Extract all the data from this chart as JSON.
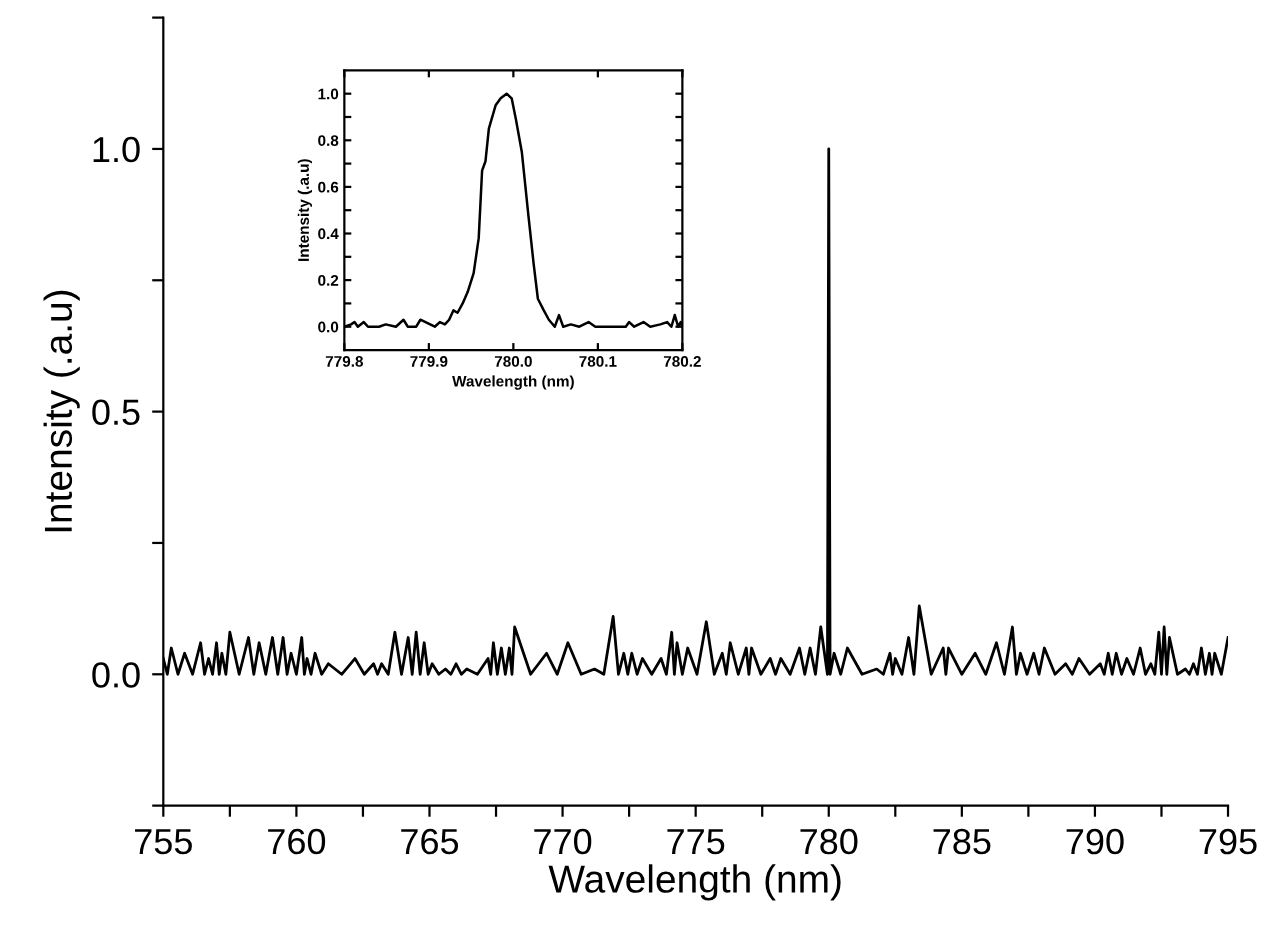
{
  "chart_data": [
    {
      "type": "line",
      "xlabel": "Wavelength (nm)",
      "ylabel": "Intensity (.a.u)",
      "xlim": [
        755,
        795
      ],
      "ylim": [
        -0.25,
        1.25
      ],
      "xticks": [
        755,
        {
          "value": 757.5,
          "label": null
        },
        760,
        {
          "value": 762.5,
          "label": null
        },
        765,
        {
          "value": 767.5,
          "label": null
        },
        770,
        {
          "value": 772.5,
          "label": null
        },
        775,
        {
          "value": 777.5,
          "label": null
        },
        780,
        {
          "value": 782.5,
          "label": null
        },
        785,
        {
          "value": 787.5,
          "label": null
        },
        790,
        {
          "value": 792.5,
          "label": null
        },
        795
      ],
      "yticks": [
        {
          "value": -0.25,
          "label": null
        },
        {
          "value": 0,
          "label": "0.0"
        },
        {
          "value": 0.25,
          "label": null
        },
        0.5,
        {
          "value": 0.75,
          "label": null
        },
        {
          "value": 1,
          "label": "1.0"
        },
        {
          "value": 1.25,
          "label": null
        }
      ],
      "grid": false,
      "legend": false,
      "line_style": "solid",
      "marker": "none",
      "series": [
        {
          "color": "#000000",
          "x": [
            755.0,
            755.15,
            755.3,
            755.55,
            755.8,
            756.1,
            756.4,
            756.55,
            756.7,
            756.85,
            757.0,
            757.1,
            757.2,
            757.35,
            757.5,
            757.85,
            758.2,
            758.4,
            758.6,
            758.85,
            759.1,
            759.3,
            759.5,
            759.65,
            759.8,
            760.0,
            760.2,
            760.3,
            760.4,
            760.55,
            760.7,
            760.95,
            761.2,
            761.7,
            762.2,
            762.55,
            762.9,
            763.05,
            763.2,
            763.45,
            763.7,
            763.95,
            764.2,
            764.35,
            764.5,
            764.65,
            764.8,
            764.95,
            765.1,
            765.35,
            765.6,
            765.8,
            766.0,
            766.2,
            766.4,
            766.8,
            767.2,
            767.3,
            767.4,
            767.55,
            767.7,
            767.85,
            768.0,
            768.1,
            768.2,
            768.8,
            769.4,
            769.8,
            770.2,
            770.7,
            771.2,
            771.55,
            771.9,
            772.1,
            772.3,
            772.45,
            772.6,
            772.8,
            773.0,
            773.35,
            773.7,
            773.9,
            774.1,
            774.2,
            774.3,
            774.5,
            774.7,
            775.05,
            775.4,
            775.7,
            776.0,
            776.15,
            776.3,
            776.6,
            776.9,
            777.0,
            777.1,
            777.45,
            777.8,
            778.0,
            778.2,
            778.55,
            778.9,
            779.1,
            779.3,
            779.5,
            779.7,
            779.95,
            780.0,
            780.05,
            780.2,
            780.45,
            780.7,
            781.25,
            781.8,
            782.05,
            782.3,
            782.4,
            782.5,
            782.75,
            783.0,
            783.2,
            783.4,
            783.85,
            784.3,
            784.4,
            784.5,
            785.0,
            785.5,
            785.9,
            786.3,
            786.6,
            786.9,
            787.05,
            787.2,
            787.45,
            787.7,
            787.9,
            788.1,
            788.5,
            788.9,
            789.15,
            789.4,
            789.8,
            790.2,
            790.35,
            790.5,
            790.65,
            790.8,
            791.0,
            791.2,
            791.45,
            791.7,
            791.9,
            792.1,
            792.25,
            792.4,
            792.5,
            792.6,
            792.7,
            792.8,
            793.1,
            793.4,
            793.55,
            793.7,
            793.85,
            794.0,
            794.15,
            794.3,
            794.4,
            794.5,
            794.75,
            795.0
          ],
          "values": [
            0.03,
            0,
            0.05,
            0,
            0.04,
            0,
            0.06,
            0,
            0.03,
            0,
            0.06,
            0,
            0.04,
            0,
            0.08,
            0,
            0.07,
            0,
            0.06,
            0,
            0.07,
            0,
            0.07,
            0,
            0.04,
            0,
            0.07,
            0,
            0.03,
            0,
            0.04,
            0,
            0.02,
            0,
            0.03,
            0,
            0.02,
            0,
            0.02,
            0,
            0.08,
            0,
            0.07,
            0,
            0.08,
            0,
            0.06,
            0,
            0.02,
            0,
            0.01,
            0,
            0.02,
            0,
            0.01,
            0,
            0.03,
            0,
            0.06,
            0,
            0.05,
            0,
            0.05,
            0,
            0.09,
            0,
            0.04,
            0,
            0.06,
            0,
            0.01,
            0,
            0.11,
            0,
            0.04,
            0,
            0.04,
            0,
            0.03,
            0,
            0.03,
            0,
            0.08,
            0,
            0.06,
            0,
            0.05,
            0,
            0.1,
            0,
            0.04,
            0,
            0.06,
            0,
            0.05,
            0,
            0.05,
            0,
            0.03,
            0,
            0.03,
            0,
            0.05,
            0,
            0.05,
            0,
            0.09,
            0,
            1.0,
            0,
            0.04,
            0,
            0.05,
            0,
            0.01,
            0,
            0.04,
            0,
            0.03,
            0,
            0.07,
            0,
            0.13,
            0,
            0.05,
            0,
            0.05,
            0,
            0.04,
            0,
            0.06,
            0,
            0.09,
            0,
            0.04,
            0,
            0.04,
            0,
            0.05,
            0,
            0.02,
            0,
            0.03,
            0,
            0.02,
            0,
            0.04,
            0,
            0.04,
            0,
            0.03,
            0,
            0.05,
            0,
            0.02,
            0,
            0.08,
            0,
            0.09,
            0,
            0.07,
            0,
            0.01,
            0,
            0.02,
            0,
            0.05,
            0,
            0.04,
            0,
            0.04,
            0,
            0.07
          ]
        }
      ]
    },
    {
      "type": "line",
      "xlabel": "Wavelength (nm)",
      "ylabel": "Intensity (.a.u)",
      "xlim": [
        779.8,
        780.2
      ],
      "ylim": [
        -0.1,
        1.1
      ],
      "xticks": [
        779.8,
        779.9,
        {
          "value": 780,
          "label": "780.0"
        },
        780.1,
        780.2
      ],
      "yticks": [
        {
          "value": 0,
          "label": "0.0"
        },
        {
          "value": 0.1,
          "label": null
        },
        0.2,
        {
          "value": 0.3,
          "label": null
        },
        0.4,
        {
          "value": 0.5,
          "label": null
        },
        0.6,
        {
          "value": 0.7,
          "label": null
        },
        0.8,
        {
          "value": 0.9,
          "label": null
        },
        {
          "value": 1,
          "label": "1.0"
        }
      ],
      "grid": false,
      "legend": false,
      "line_style": "solid",
      "marker": "none",
      "series": [
        {
          "color": "#000000",
          "x": [
            779.8,
            779.808,
            779.812,
            779.816,
            779.823,
            779.828,
            779.841,
            779.849,
            779.861,
            779.87,
            779.875,
            779.885,
            779.89,
            779.907,
            779.913,
            779.919,
            779.924,
            779.929,
            779.934,
            779.94,
            779.946,
            779.953,
            779.959,
            779.963,
            779.967,
            779.971,
            779.979,
            779.985,
            779.992,
            779.998,
            780.003,
            780.01,
            780.018,
            780.024,
            780.029,
            780.036,
            780.042,
            780.049,
            780.054,
            780.059,
            780.068,
            780.078,
            780.089,
            780.097,
            780.133,
            780.137,
            780.143,
            780.154,
            780.162,
            780.174,
            780.182,
            780.187,
            780.191,
            780.195,
            780.198,
            780.2
          ],
          "values": [
            0,
            0.01,
            0.02,
            0,
            0.02,
            0,
            0,
            0.01,
            0,
            0.03,
            0,
            0,
            0.03,
            0,
            0.02,
            0.01,
            0.03,
            0.07,
            0.06,
            0.1,
            0.15,
            0.23,
            0.38,
            0.67,
            0.71,
            0.85,
            0.95,
            0.98,
            1.0,
            0.98,
            0.89,
            0.75,
            0.47,
            0.27,
            0.12,
            0.07,
            0.03,
            0,
            0.05,
            0,
            0.01,
            0,
            0.02,
            0,
            0,
            0.02,
            0,
            0.02,
            0,
            0.01,
            0.02,
            0,
            0.05,
            0,
            0.02,
            0
          ]
        }
      ]
    }
  ]
}
